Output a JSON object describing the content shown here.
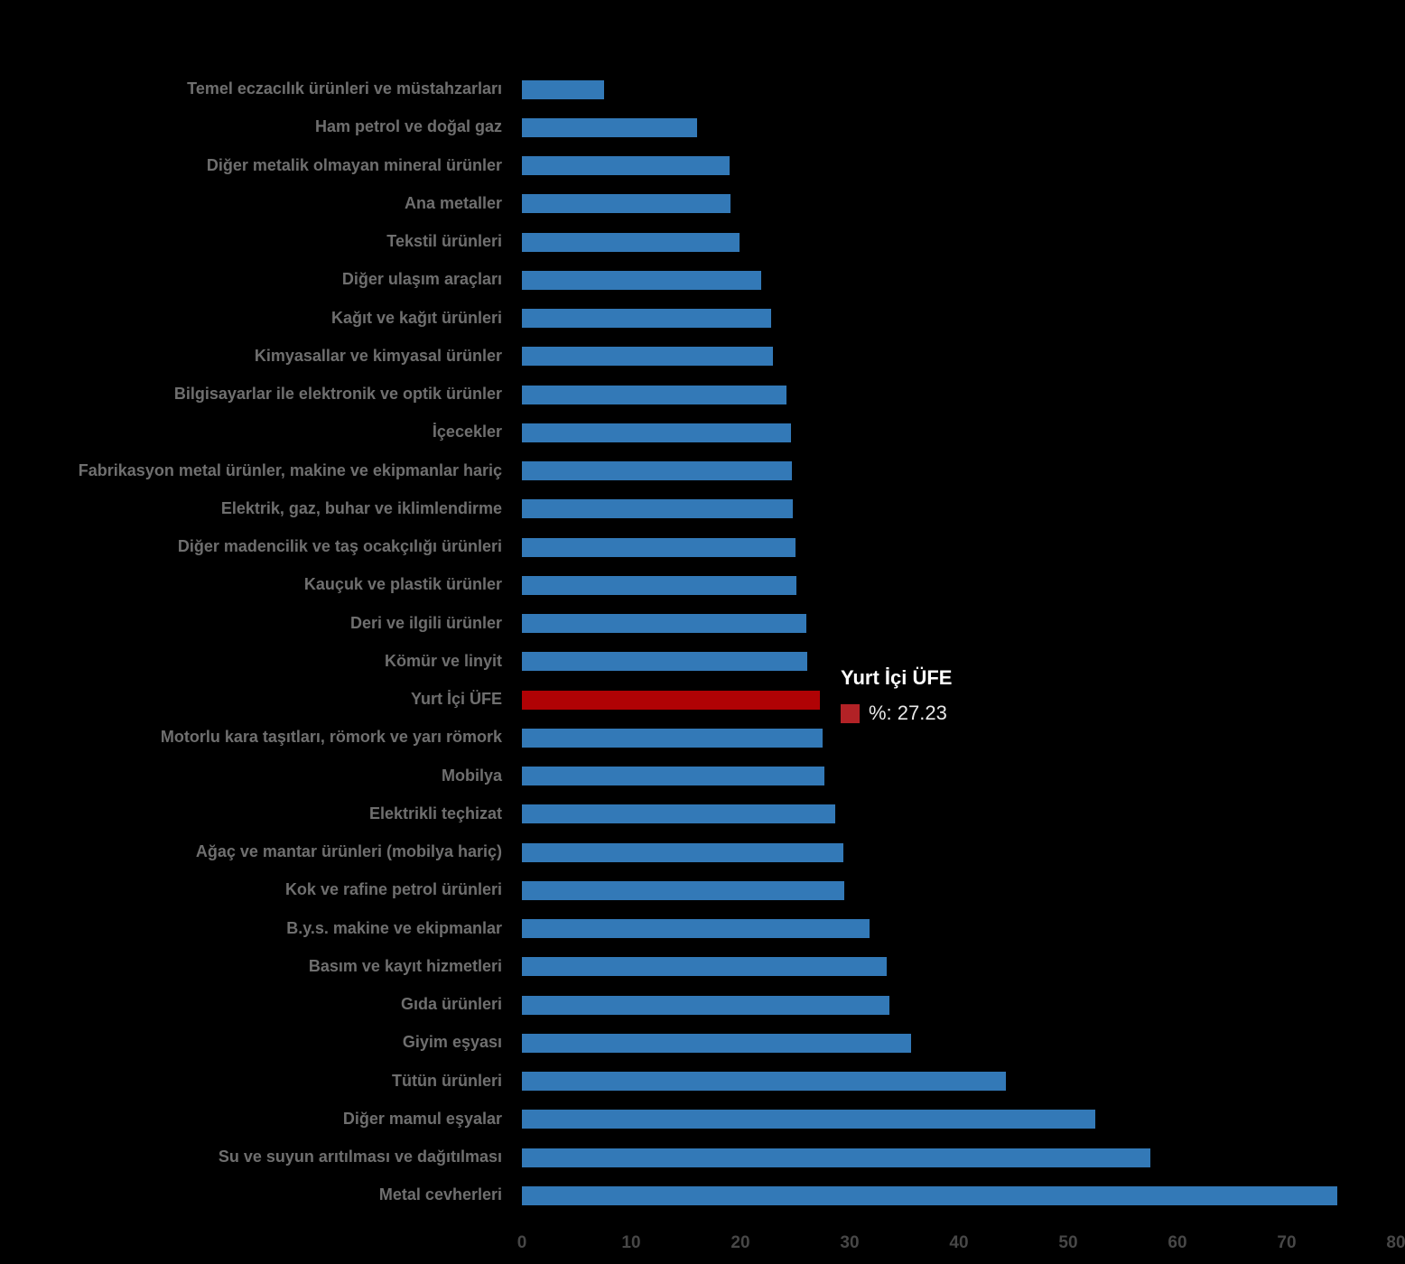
{
  "colors": {
    "background": "#000000",
    "bar_color": "#3379B7",
    "highlight_color": "#B00205",
    "category_label_gray": "#6F6F6F",
    "tick_gray": "#474747",
    "tooltip_title_color": "#FFFFFF",
    "tooltip_value_color": "#E8E8E8",
    "tooltip_swatch_color": "#B22226"
  },
  "tooltip": {
    "title": "Yurt İçi ÜFE",
    "value_label": "%: 27.23"
  },
  "chart_data": {
    "type": "bar",
    "orientation": "horizontal",
    "title": "",
    "xlabel": "",
    "ylabel": "",
    "xlim": [
      0,
      80
    ],
    "grid": false,
    "legend_position": "tooltip",
    "highlight_category": "Yurt İçi ÜFE",
    "highlight_value": 27.23,
    "x_ticks": [
      0,
      10,
      20,
      30,
      40,
      50,
      60,
      70,
      80
    ],
    "categories": [
      "Temel eczacılık ürünleri ve müstahzarları",
      "Ham petrol ve doğal gaz",
      "Diğer metalik olmayan mineral ürünler",
      "Ana metaller",
      "Tekstil ürünleri",
      "Diğer ulaşım araçları",
      "Kağıt ve kağıt ürünleri",
      "Kimyasallar ve kimyasal ürünler",
      "Bilgisayarlar ile elektronik ve optik ürünler",
      "İçecekler",
      "Fabrikasyon metal ürünler, makine ve ekipmanlar hariç",
      "Elektrik, gaz, buhar ve iklimlendirme",
      "Diğer madencilik ve taş ocakçılığı ürünleri",
      "Kauçuk ve plastik ürünler",
      "Deri ve ilgili ürünler",
      "Kömür ve linyit",
      "Yurt İçi ÜFE",
      "Motorlu kara taşıtları, römork ve yarı römork",
      "Mobilya",
      "Elektrikli teçhizat",
      "Ağaç ve mantar ürünleri (mobilya hariç)",
      "Kok ve rafine petrol ürünleri",
      "B.y.s. makine ve ekipmanlar",
      "Basım ve kayıt hizmetleri",
      "Gıda ürünleri",
      "Giyim eşyası",
      "Tütün ürünleri",
      "Diğer mamul eşyalar",
      "Su ve suyun arıtılması ve dağıtılması",
      "Metal cevherleri"
    ],
    "values": [
      7.5,
      16.0,
      19.0,
      19.1,
      19.9,
      21.9,
      22.8,
      23.0,
      24.2,
      24.6,
      24.7,
      24.8,
      25.0,
      25.1,
      26.0,
      26.1,
      27.23,
      27.5,
      27.7,
      28.7,
      29.4,
      29.5,
      31.8,
      33.4,
      33.6,
      35.6,
      44.3,
      52.5,
      57.5,
      74.6
    ]
  }
}
